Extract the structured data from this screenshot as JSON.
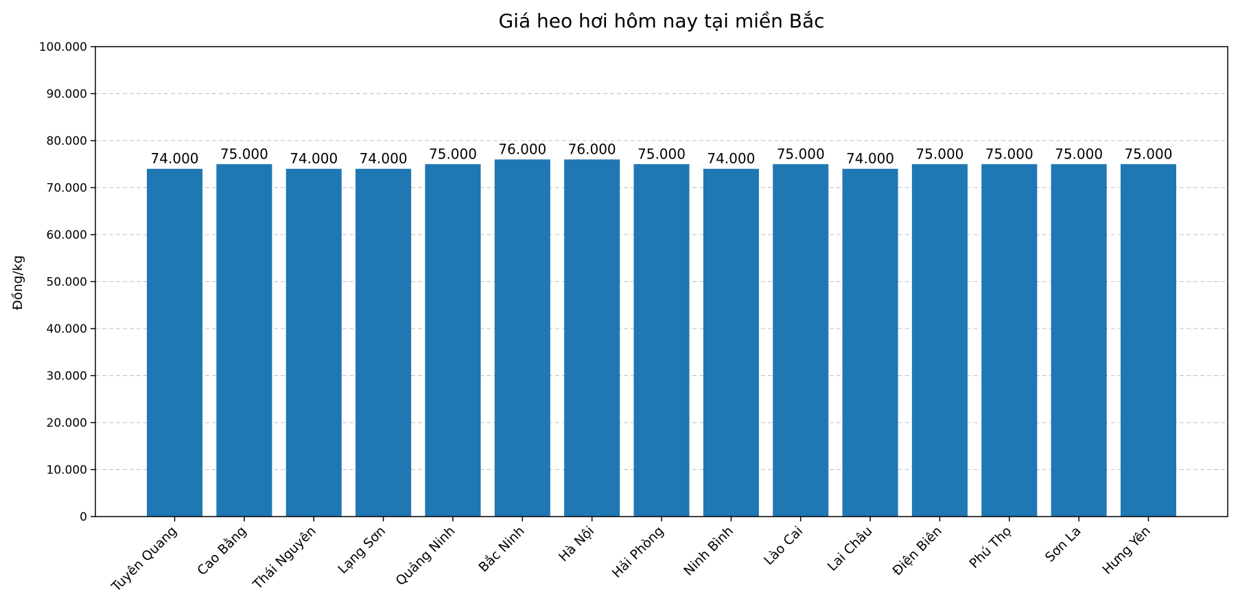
{
  "chart_data": {
    "type": "bar",
    "title": "Giá heo hơi hôm nay tại miền Bắc",
    "xlabel": "",
    "ylabel": "Đồng/kg",
    "ylim": [
      0,
      100000
    ],
    "yticks": [
      0,
      10000,
      20000,
      30000,
      40000,
      50000,
      60000,
      70000,
      80000,
      90000,
      100000
    ],
    "ytick_labels": [
      "0",
      "10.000",
      "20.000",
      "30.000",
      "40.000",
      "50.000",
      "60.000",
      "70.000",
      "80.000",
      "90.000",
      "100.000"
    ],
    "grid": "horizontal dashed",
    "bar_color": "#1f77b4",
    "categories": [
      "Tuyên Quang",
      "Cao Bằng",
      "Thái Nguyên",
      "Lạng Sơn",
      "Quảng Ninh",
      "Bắc Ninh",
      "Hà Nội",
      "Hải Phòng",
      "Ninh Bình",
      "Lào Cai",
      "Lai Châu",
      "Điện Biên",
      "Phú Thọ",
      "Sơn La",
      "Hưng Yên"
    ],
    "values": [
      74000,
      75000,
      74000,
      74000,
      75000,
      76000,
      76000,
      75000,
      74000,
      75000,
      74000,
      75000,
      75000,
      75000,
      75000
    ],
    "value_labels": [
      "74.000",
      "75.000",
      "74.000",
      "74.000",
      "75.000",
      "76.000",
      "76.000",
      "75.000",
      "74.000",
      "75.000",
      "74.000",
      "75.000",
      "75.000",
      "75.000",
      "75.000"
    ]
  }
}
